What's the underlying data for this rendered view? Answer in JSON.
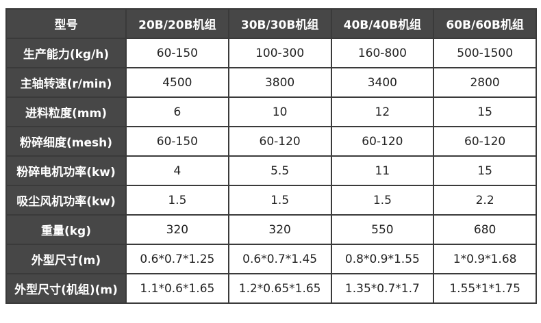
{
  "table": {
    "header": [
      "型号",
      "20B/20B机组",
      "30B/30B机组",
      "40B/40B机组",
      "60B/60B机组"
    ],
    "rows": [
      [
        "生产能力(kg/h)",
        "60-150",
        "100-300",
        "160-800",
        "500-1500"
      ],
      [
        "主轴转速(r/min)",
        "4500",
        "3800",
        "3400",
        "2800"
      ],
      [
        "进料粒度(mm)",
        "6",
        "10",
        "12",
        "15"
      ],
      [
        "粉碎细度(mesh)",
        "60-150",
        "60-120",
        "60-120",
        "60-120"
      ],
      [
        "粉碎电机功率(kw)",
        "4",
        "5.5",
        "11",
        "15"
      ],
      [
        "吸尘风机功率(kw)",
        "1.5",
        "1.5",
        "1.5",
        "2.2"
      ],
      [
        "重量(kg)",
        "320",
        "320",
        "550",
        "680"
      ],
      [
        "外型尺寸(m)",
        "0.6*0.7*1.25",
        "0.6*0.7*1.45",
        "0.8*0.9*1.55",
        "1*0.9*1.68"
      ],
      [
        "外型尺寸(机组)(m)",
        "1.1*0.6*1.65",
        "1.2*0.65*1.65",
        "1.35*0.7*1.7",
        "1.55*1*1.75"
      ]
    ]
  }
}
